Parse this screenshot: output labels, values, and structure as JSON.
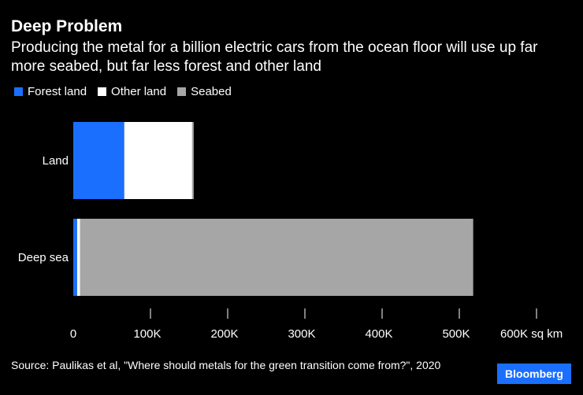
{
  "title": "Deep Problem",
  "subtitle": "Producing the metal for a billion electric cars from the ocean floor will use up far more seabed, but far less forest and other land",
  "source": "Source: Paulikas et al, \"Where should metals for the green transition come from?\", 2020",
  "brand": "Bloomberg",
  "colors": {
    "forest": "#1a6fff",
    "other": "#ffffff",
    "seabed": "#a6a6a6",
    "background": "#000000"
  },
  "chart_data": {
    "type": "bar",
    "orientation": "horizontal",
    "stacked": true,
    "categories": [
      "Land",
      "Deep sea"
    ],
    "series": [
      {
        "name": "Forest land",
        "values": [
          66000,
          5000
        ]
      },
      {
        "name": "Other land",
        "values": [
          88000,
          4000
        ]
      },
      {
        "name": "Seabed",
        "values": [
          2000,
          509000
        ]
      }
    ],
    "xlim": [
      0,
      600000
    ],
    "xticks": [
      0,
      100000,
      200000,
      300000,
      400000,
      500000,
      600000
    ],
    "xtick_labels": [
      "0",
      "100K",
      "200K",
      "300K",
      "400K",
      "500K",
      "600K sq km"
    ],
    "legend_position": "top-left",
    "grid": false
  }
}
